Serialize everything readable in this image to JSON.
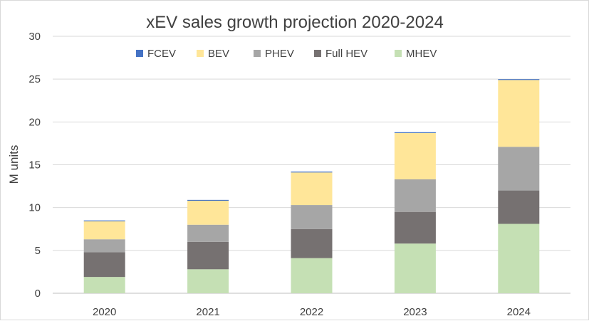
{
  "chart_data": {
    "type": "bar",
    "stacked": true,
    "title": "xEV sales  growth projection 2020-2024",
    "xlabel": "",
    "ylabel": "M units",
    "ylim": [
      0,
      30
    ],
    "yticks": [
      0,
      5,
      10,
      15,
      20,
      25,
      30
    ],
    "grid": true,
    "legend_position": "top",
    "categories": [
      "2020",
      "2021",
      "2022",
      "2023",
      "2024"
    ],
    "series": [
      {
        "name": "MHEV",
        "color": "#c5e0b4",
        "values": [
          1.9,
          2.8,
          4.1,
          5.8,
          8.1
        ]
      },
      {
        "name": "Full HEV",
        "color": "#767171",
        "values": [
          2.9,
          3.2,
          3.4,
          3.7,
          3.9
        ]
      },
      {
        "name": "PHEV",
        "color": "#a6a6a6",
        "values": [
          1.5,
          2.0,
          2.8,
          3.8,
          5.1
        ]
      },
      {
        "name": "BEV",
        "color": "#ffe699",
        "values": [
          2.1,
          2.8,
          3.8,
          5.4,
          7.8
        ]
      },
      {
        "name": "FCEV",
        "color": "#4472c4",
        "values": [
          0.1,
          0.1,
          0.1,
          0.1,
          0.1
        ]
      }
    ],
    "legend_order": [
      "FCEV",
      "BEV",
      "PHEV",
      "Full HEV",
      "MHEV"
    ]
  }
}
